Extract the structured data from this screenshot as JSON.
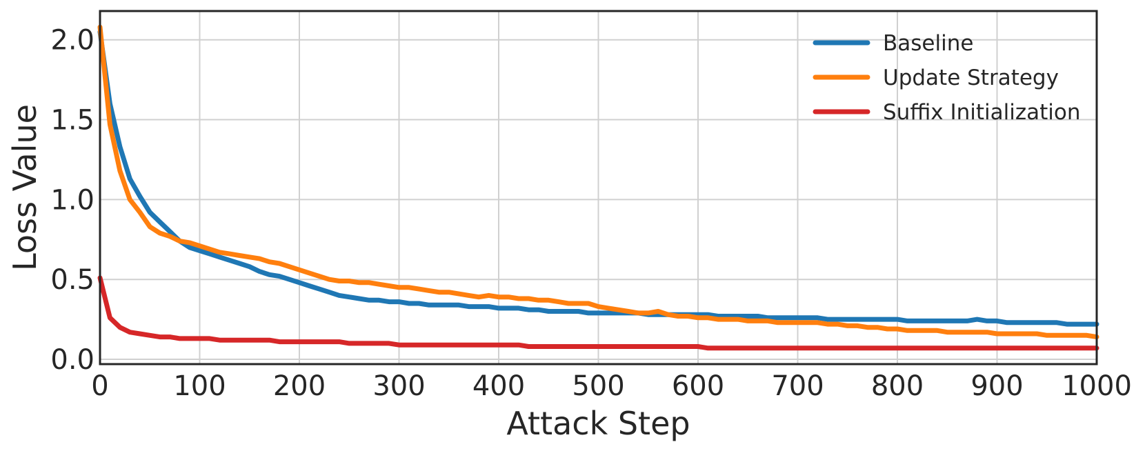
{
  "chart_data": {
    "type": "line",
    "title": "",
    "xlabel": "Attack Step",
    "ylabel": "Loss Value",
    "xlim": [
      0,
      1000
    ],
    "ylim": [
      -0.03,
      2.18
    ],
    "xticks": [
      0,
      100,
      200,
      300,
      400,
      500,
      600,
      700,
      800,
      900,
      1000
    ],
    "yticks": [
      0.0,
      0.5,
      1.0,
      1.5,
      2.0
    ],
    "grid": true,
    "legend_position": "top-right",
    "x": [
      0,
      10,
      20,
      30,
      40,
      50,
      60,
      70,
      80,
      90,
      100,
      110,
      120,
      130,
      140,
      150,
      160,
      170,
      180,
      190,
      200,
      210,
      220,
      230,
      240,
      250,
      260,
      270,
      280,
      290,
      300,
      310,
      320,
      330,
      340,
      350,
      360,
      370,
      380,
      390,
      400,
      410,
      420,
      430,
      440,
      450,
      460,
      470,
      480,
      490,
      500,
      510,
      520,
      530,
      540,
      550,
      560,
      570,
      580,
      590,
      600,
      610,
      620,
      630,
      640,
      650,
      660,
      670,
      680,
      690,
      700,
      710,
      720,
      730,
      740,
      750,
      760,
      770,
      780,
      790,
      800,
      810,
      820,
      830,
      840,
      850,
      860,
      870,
      880,
      890,
      900,
      910,
      920,
      930,
      940,
      950,
      960,
      970,
      980,
      990,
      1000
    ],
    "series": [
      {
        "name": "Baseline",
        "color": "#1f77b4",
        "values": [
          2.05,
          1.6,
          1.33,
          1.13,
          1.02,
          0.92,
          0.86,
          0.8,
          0.74,
          0.7,
          0.68,
          0.66,
          0.64,
          0.62,
          0.6,
          0.58,
          0.55,
          0.53,
          0.52,
          0.5,
          0.48,
          0.46,
          0.44,
          0.42,
          0.4,
          0.39,
          0.38,
          0.37,
          0.37,
          0.36,
          0.36,
          0.35,
          0.35,
          0.34,
          0.34,
          0.34,
          0.34,
          0.33,
          0.33,
          0.33,
          0.32,
          0.32,
          0.32,
          0.31,
          0.31,
          0.3,
          0.3,
          0.3,
          0.3,
          0.29,
          0.29,
          0.29,
          0.29,
          0.29,
          0.29,
          0.28,
          0.28,
          0.28,
          0.28,
          0.28,
          0.28,
          0.28,
          0.27,
          0.27,
          0.27,
          0.27,
          0.27,
          0.26,
          0.26,
          0.26,
          0.26,
          0.26,
          0.26,
          0.25,
          0.25,
          0.25,
          0.25,
          0.25,
          0.25,
          0.25,
          0.25,
          0.24,
          0.24,
          0.24,
          0.24,
          0.24,
          0.24,
          0.24,
          0.25,
          0.24,
          0.24,
          0.23,
          0.23,
          0.23,
          0.23,
          0.23,
          0.23,
          0.22,
          0.22,
          0.22,
          0.22
        ]
      },
      {
        "name": "Update Strategy",
        "color": "#ff7f0e",
        "values": [
          2.08,
          1.47,
          1.18,
          1.0,
          0.92,
          0.83,
          0.79,
          0.77,
          0.74,
          0.73,
          0.71,
          0.69,
          0.67,
          0.66,
          0.65,
          0.64,
          0.63,
          0.61,
          0.6,
          0.58,
          0.56,
          0.54,
          0.52,
          0.5,
          0.49,
          0.49,
          0.48,
          0.48,
          0.47,
          0.46,
          0.45,
          0.45,
          0.44,
          0.43,
          0.42,
          0.42,
          0.41,
          0.4,
          0.39,
          0.4,
          0.39,
          0.39,
          0.38,
          0.38,
          0.37,
          0.37,
          0.36,
          0.35,
          0.35,
          0.35,
          0.33,
          0.32,
          0.31,
          0.3,
          0.29,
          0.29,
          0.3,
          0.28,
          0.27,
          0.27,
          0.26,
          0.26,
          0.25,
          0.25,
          0.25,
          0.24,
          0.24,
          0.24,
          0.23,
          0.23,
          0.23,
          0.23,
          0.23,
          0.22,
          0.22,
          0.21,
          0.21,
          0.2,
          0.2,
          0.19,
          0.19,
          0.18,
          0.18,
          0.18,
          0.18,
          0.17,
          0.17,
          0.17,
          0.17,
          0.17,
          0.16,
          0.16,
          0.16,
          0.16,
          0.16,
          0.15,
          0.15,
          0.15,
          0.15,
          0.15,
          0.14
        ]
      },
      {
        "name": "Suffix Initialization",
        "color": "#d62728",
        "values": [
          0.51,
          0.26,
          0.2,
          0.17,
          0.16,
          0.15,
          0.14,
          0.14,
          0.13,
          0.13,
          0.13,
          0.13,
          0.12,
          0.12,
          0.12,
          0.12,
          0.12,
          0.12,
          0.11,
          0.11,
          0.11,
          0.11,
          0.11,
          0.11,
          0.11,
          0.1,
          0.1,
          0.1,
          0.1,
          0.1,
          0.09,
          0.09,
          0.09,
          0.09,
          0.09,
          0.09,
          0.09,
          0.09,
          0.09,
          0.09,
          0.09,
          0.09,
          0.09,
          0.08,
          0.08,
          0.08,
          0.08,
          0.08,
          0.08,
          0.08,
          0.08,
          0.08,
          0.08,
          0.08,
          0.08,
          0.08,
          0.08,
          0.08,
          0.08,
          0.08,
          0.08,
          0.07,
          0.07,
          0.07,
          0.07,
          0.07,
          0.07,
          0.07,
          0.07,
          0.07,
          0.07,
          0.07,
          0.07,
          0.07,
          0.07,
          0.07,
          0.07,
          0.07,
          0.07,
          0.07,
          0.07,
          0.07,
          0.07,
          0.07,
          0.07,
          0.07,
          0.07,
          0.07,
          0.07,
          0.07,
          0.07,
          0.07,
          0.07,
          0.07,
          0.07,
          0.07,
          0.07,
          0.07,
          0.07,
          0.07,
          0.07
        ]
      }
    ]
  }
}
